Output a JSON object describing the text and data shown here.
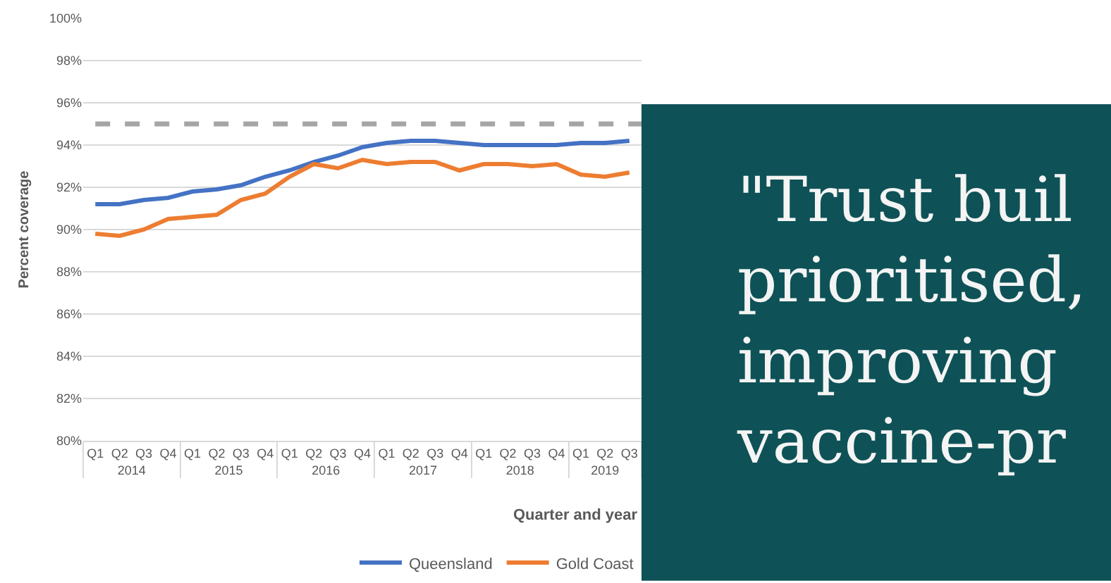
{
  "chart_data": {
    "type": "line",
    "xlabel": "Quarter and year",
    "ylabel": "Percent coverage",
    "categories": [
      "Q1",
      "Q2",
      "Q3",
      "Q4",
      "Q1",
      "Q2",
      "Q3",
      "Q4",
      "Q1",
      "Q2",
      "Q3",
      "Q4",
      "Q1",
      "Q2",
      "Q3",
      "Q4",
      "Q1",
      "Q2",
      "Q3",
      "Q4",
      "Q1",
      "Q2",
      "Q3"
    ],
    "series": [
      {
        "name": "Queensland",
        "color": "#4472c4",
        "values": [
          91.2,
          91.2,
          91.4,
          91.5,
          91.8,
          91.9,
          92.1,
          92.5,
          92.8,
          93.2,
          93.5,
          93.9,
          94.1,
          94.2,
          94.2,
          94.1,
          94.0,
          94.0,
          94.0,
          94.0,
          94.1,
          94.1,
          94.2
        ]
      },
      {
        "name": "Gold Coast",
        "color": "#ed7d31",
        "values": [
          89.8,
          89.7,
          90.0,
          90.5,
          90.6,
          90.7,
          91.4,
          91.7,
          92.5,
          93.1,
          92.9,
          93.3,
          93.1,
          93.2,
          93.2,
          92.8,
          93.1,
          93.1,
          93.0,
          93.1,
          92.6,
          92.5,
          92.7
        ]
      }
    ],
    "ylim": [
      80,
      100
    ],
    "yticks": [
      {
        "value": 80,
        "label": "80%"
      },
      {
        "value": 82,
        "label": "82%"
      },
      {
        "value": 84,
        "label": "84%"
      },
      {
        "value": 86,
        "label": "86%"
      },
      {
        "value": 88,
        "label": "88%"
      },
      {
        "value": 90,
        "label": "90%"
      },
      {
        "value": 92,
        "label": "92%"
      },
      {
        "value": 94,
        "label": "94%"
      },
      {
        "value": 96,
        "label": "96%"
      },
      {
        "value": 98,
        "label": "98%"
      },
      {
        "value": 100,
        "label": "100%"
      }
    ],
    "ref_lines": [
      {
        "axis": "y",
        "value": 95,
        "color": "#a5a5a5",
        "line_style": "dashed"
      }
    ],
    "grid": "y",
    "legend": "bottom",
    "annotations": [
      "\"Trust buil\nprioritised,\nimproving\nvaccine-pr",
      "2014",
      "2015",
      "2016",
      "2017",
      "2018",
      "2019"
    ]
  }
}
